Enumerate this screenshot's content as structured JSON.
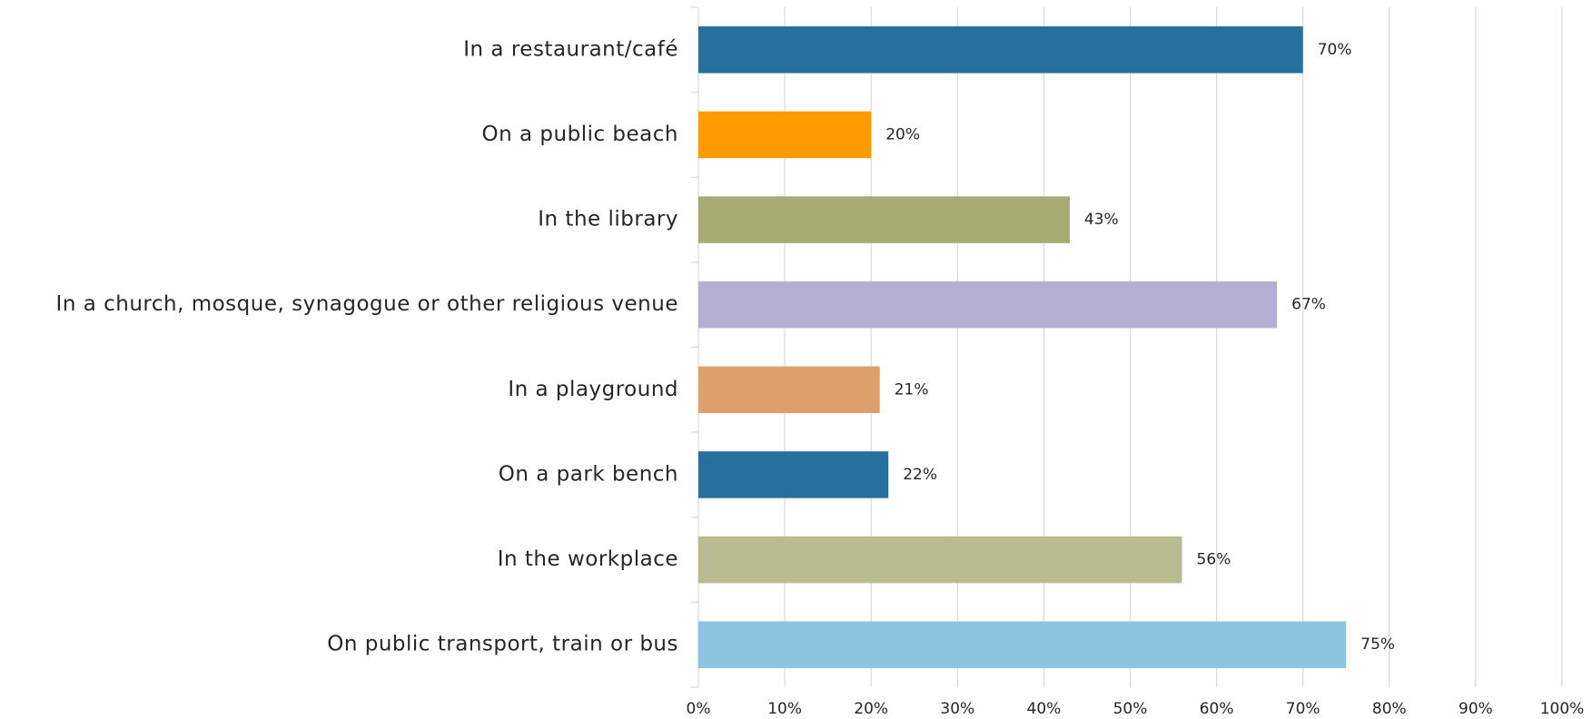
{
  "chart_data": {
    "type": "bar",
    "orientation": "horizontal",
    "categories": [
      "In a restaurant/café",
      "On a public beach",
      "In the library",
      "In a church, mosque, synagogue or other religious venue",
      "In a playground",
      "On a park bench",
      "In the workplace",
      "On public transport, train or bus"
    ],
    "values": [
      70,
      20,
      43,
      67,
      21,
      22,
      56,
      75
    ],
    "value_labels": [
      "70%",
      "20%",
      "43%",
      "67%",
      "21%",
      "22%",
      "56%",
      "75%"
    ],
    "colors": [
      "#276f9c",
      "#ff9b00",
      "#a7aa73",
      "#b5afd4",
      "#dea06a",
      "#276f9c",
      "#b9bc90",
      "#8cc3e0"
    ],
    "xlim": [
      0,
      100
    ],
    "xticks": [
      {
        "value": 0,
        "label": "0%"
      },
      {
        "value": 10,
        "label": "10%"
      },
      {
        "value": 20,
        "label": "20%"
      },
      {
        "value": 30,
        "label": "30%"
      },
      {
        "value": 40,
        "label": "40%"
      },
      {
        "value": 50,
        "label": "50%"
      },
      {
        "value": 60,
        "label": "60%"
      },
      {
        "value": 70,
        "label": "70%"
      },
      {
        "value": 80,
        "label": "80%"
      },
      {
        "value": 90,
        "label": "90%"
      },
      {
        "value": 100,
        "label": "100%"
      }
    ],
    "grid": true
  }
}
